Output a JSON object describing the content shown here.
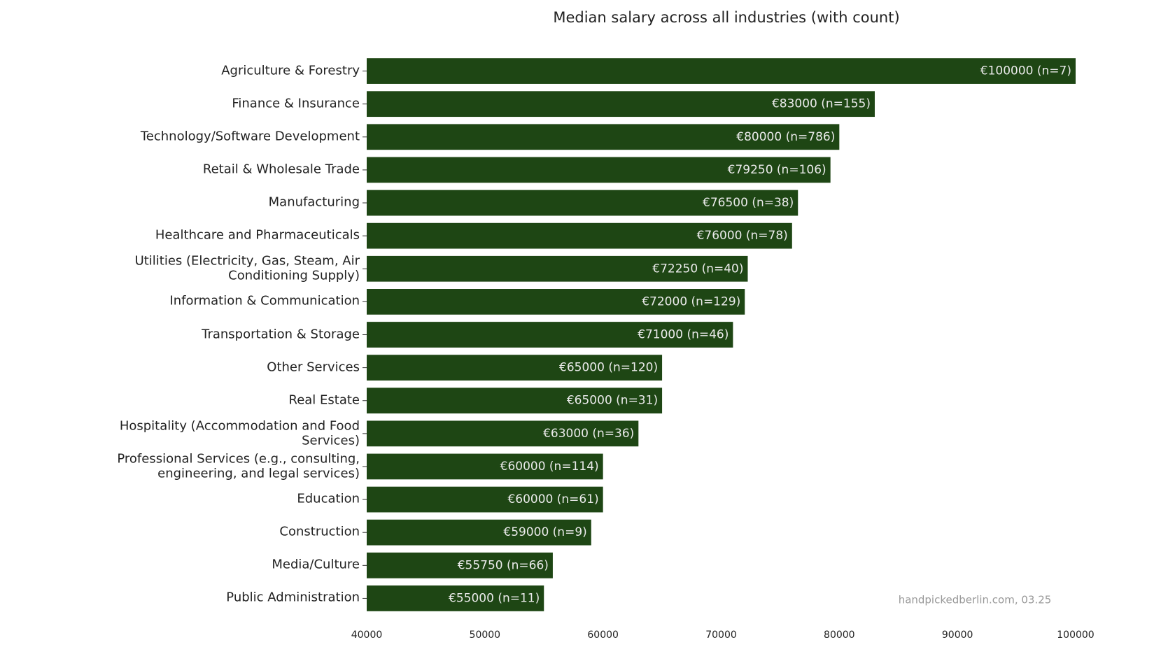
{
  "chart_data": {
    "type": "barh",
    "title": "Median salary across all industries (with count)",
    "categories": [
      "Agriculture & Forestry",
      "Finance & Insurance",
      "Technology/Software Development",
      "Retail & Wholesale Trade",
      "Manufacturing",
      "Healthcare and Pharmaceuticals",
      "Utilities (Electricity, Gas, Steam, Air\nConditioning Supply)",
      "Information & Communication",
      "Transportation & Storage",
      "Other Services",
      "Real Estate",
      "Hospitality (Accommodation and Food\nServices)",
      "Professional Services (e.g., consulting,\nengineering, and legal services)",
      "Education",
      "Construction",
      "Media/Culture",
      "Public Administration"
    ],
    "values": [
      100000,
      83000,
      80000,
      79250,
      76500,
      76000,
      72250,
      72000,
      71000,
      65000,
      65000,
      63000,
      60000,
      60000,
      59000,
      55750,
      55000
    ],
    "value_labels": [
      "€100000 (n=7)",
      "€83000 (n=155)",
      "€80000 (n=786)",
      "€79250 (n=106)",
      "€76500 (n=38)",
      "€76000 (n=78)",
      "€72250 (n=40)",
      "€72000 (n=129)",
      "€71000 (n=46)",
      "€65000 (n=120)",
      "€65000 (n=31)",
      "€63000 (n=36)",
      "€60000 (n=114)",
      "€60000 (n=61)",
      "€59000 (n=9)",
      "€55750 (n=66)",
      "€55000 (n=11)"
    ],
    "color": "#1e4614",
    "xlim": [
      40000,
      100000
    ],
    "xticks": [
      40000,
      50000,
      60000,
      70000,
      80000,
      90000,
      100000
    ],
    "grid": false,
    "annotation": "handpickedberlin.com, 03.25"
  }
}
